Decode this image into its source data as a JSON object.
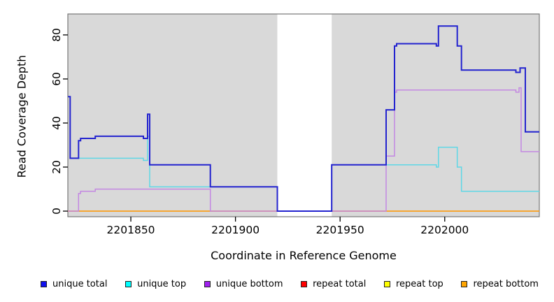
{
  "figure": {
    "background": "#ffffff"
  },
  "chart_data": {
    "type": "line",
    "step_mode": "after",
    "title": "",
    "xlabel": "Coordinate in Reference Genome",
    "ylabel": "Read Coverage Depth",
    "xlim": [
      2201819.9,
      2202045.2
    ],
    "ylim": [
      -2.54,
      89.5
    ],
    "x_ticks": [
      2201850,
      2201900,
      2201950,
      2202000
    ],
    "y_ticks": [
      0,
      20,
      40,
      60,
      80
    ],
    "grid": false,
    "legend_position": "bottom",
    "plot_background": "#d9d9d9",
    "gap_region": [
      2201920,
      2201946
    ],
    "box_color": "#777777",
    "tick_color": "#000000",
    "draw_order": [
      "repeat total",
      "repeat top",
      "repeat bottom",
      "unique bottom",
      "unique top",
      "unique total"
    ],
    "series": [
      {
        "name": "unique total",
        "legend_color": "#1111ee",
        "line_color": "#2323cf",
        "line_width": 2,
        "points": [
          [
            2201820,
            52
          ],
          [
            2201821,
            24
          ],
          [
            2201825,
            32
          ],
          [
            2201826,
            33
          ],
          [
            2201833,
            34
          ],
          [
            2201856,
            33
          ],
          [
            2201858,
            44
          ],
          [
            2201859,
            21
          ],
          [
            2201888,
            11
          ],
          [
            2201920,
            0
          ],
          [
            2201946,
            21
          ],
          [
            2201972,
            46
          ],
          [
            2201976,
            75
          ],
          [
            2201977,
            76
          ],
          [
            2201996,
            75
          ],
          [
            2201997,
            84
          ],
          [
            2202006,
            75
          ],
          [
            2202008,
            64
          ],
          [
            2202034,
            63
          ],
          [
            2202036,
            65
          ],
          [
            2202038.5,
            36
          ]
        ]
      },
      {
        "name": "unique top",
        "legend_color": "#00ffff",
        "line_color": "#5fd8e6",
        "line_width": 1.5,
        "points": [
          [
            2201820,
            52
          ],
          [
            2201821,
            24
          ],
          [
            2201856,
            23
          ],
          [
            2201858,
            34
          ],
          [
            2201859,
            11
          ],
          [
            2201920,
            0
          ],
          [
            2201946,
            21
          ],
          [
            2201996,
            20
          ],
          [
            2201997,
            29
          ],
          [
            2202006,
            20
          ],
          [
            2202008,
            9
          ]
        ]
      },
      {
        "name": "unique bottom",
        "legend_color": "#a020f0",
        "line_color": "#c388e2",
        "line_width": 1.5,
        "points": [
          [
            2201820,
            0
          ],
          [
            2201825,
            8
          ],
          [
            2201826,
            9
          ],
          [
            2201833,
            10
          ],
          [
            2201888,
            0
          ],
          [
            2201972,
            25
          ],
          [
            2201976,
            54
          ],
          [
            2201977,
            55
          ],
          [
            2202034,
            54
          ],
          [
            2202035.5,
            56
          ],
          [
            2202036.5,
            27
          ]
        ]
      },
      {
        "name": "repeat total",
        "legend_color": "#ff0000",
        "line_color": "#cc2222",
        "line_width": 1.2,
        "points": [
          [
            2201820,
            0
          ]
        ]
      },
      {
        "name": "repeat top",
        "legend_color": "#ffff00",
        "line_color": "#e8e800",
        "line_width": 1.2,
        "points": [
          [
            2201820,
            0
          ]
        ]
      },
      {
        "name": "repeat bottom",
        "legend_color": "#ffa500",
        "line_color": "#ff9f1a",
        "line_width": 1.5,
        "points": [
          [
            2201820,
            0
          ]
        ]
      }
    ]
  }
}
